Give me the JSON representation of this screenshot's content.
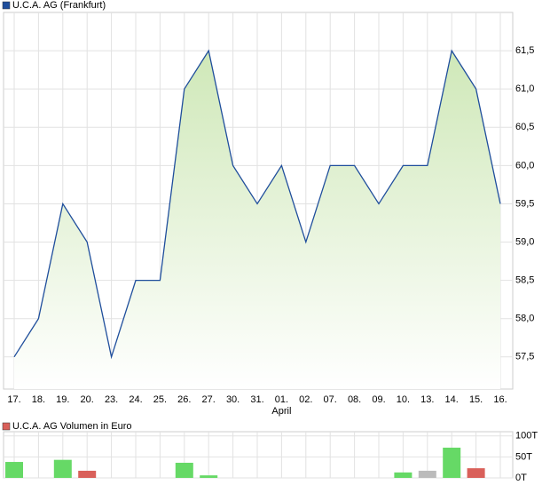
{
  "chart_data": [
    {
      "type": "area-line",
      "series": [
        {
          "name": "U.C.A. AG (Frankfurt)",
          "color": "#1f4e9c",
          "values": [
            57.5,
            58.0,
            59.5,
            59.0,
            57.5,
            58.5,
            58.5,
            61.0,
            61.5,
            60.0,
            59.5,
            60.0,
            59.0,
            60.0,
            60.0,
            59.5,
            60.0,
            60.0,
            61.5,
            61.0,
            59.5
          ]
        }
      ],
      "categories": [
        "17.",
        "18.",
        "19.",
        "20.",
        "23.",
        "24.",
        "25.",
        "26.",
        "27.",
        "30.",
        "31.",
        "01.",
        "02.",
        "07.",
        "08.",
        "09.",
        "10.",
        "13.",
        "14.",
        "15.",
        "16."
      ],
      "annotations": [
        {
          "text": "April",
          "at": "01."
        }
      ],
      "ylim": [
        57.08,
        62.0
      ],
      "yticks": [
        {
          "value": 57.5,
          "label": "57,5"
        },
        {
          "value": 58.0,
          "label": "58,0"
        },
        {
          "value": 58.5,
          "label": "58,5"
        },
        {
          "value": 59.0,
          "label": "59,0"
        },
        {
          "value": 59.5,
          "label": "59,5"
        },
        {
          "value": 60.0,
          "label": "60,0"
        },
        {
          "value": 60.5,
          "label": "60,5"
        },
        {
          "value": 61.0,
          "label": "61,0"
        },
        {
          "value": 61.5,
          "label": "61,5"
        }
      ],
      "grid": true
    },
    {
      "type": "bar",
      "series": [
        {
          "name": "U.C.A. AG Volumen in Euro",
          "color": "#d9605a",
          "values": [
            38,
            null,
            43,
            17,
            null,
            null,
            null,
            36,
            6,
            null,
            null,
            null,
            null,
            null,
            null,
            null,
            13,
            17,
            72,
            23,
            null
          ],
          "colors": [
            "#66d966",
            null,
            "#66d966",
            "#d9605a",
            null,
            null,
            null,
            "#66d966",
            "#66d966",
            null,
            null,
            null,
            null,
            null,
            null,
            null,
            "#66d966",
            "#bbbbbb",
            "#66d966",
            "#d9605a",
            null
          ]
        }
      ],
      "ylim": [
        0,
        110
      ],
      "yticks": [
        {
          "value": 0,
          "label": "0T"
        },
        {
          "value": 50,
          "label": "50T"
        },
        {
          "value": 100,
          "label": "100T"
        }
      ],
      "grid": true
    }
  ]
}
